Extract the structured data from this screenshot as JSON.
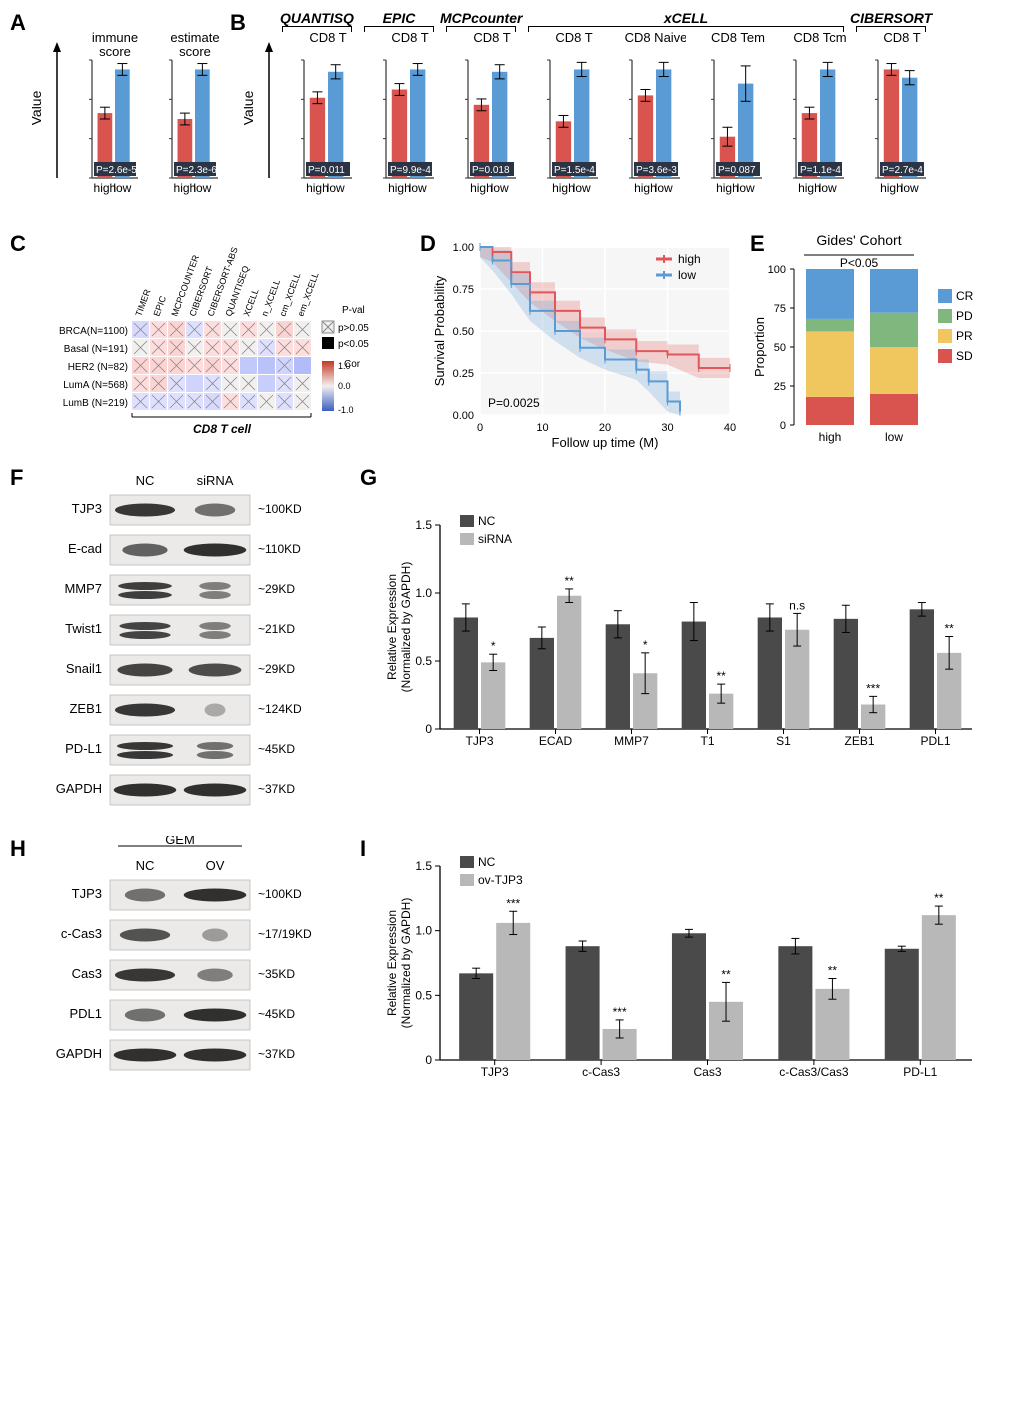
{
  "colors": {
    "high": "#d9534f",
    "low": "#5a9bd5",
    "dark_bar_bg": "#2a3445",
    "axis": "#333333",
    "nc_bar": "#4a4a4a",
    "si_bar": "#b8b8b8",
    "survival_high": "#e15759",
    "survival_low": "#76b7b2",
    "cr": "#5a9bd5",
    "pd": "#7fb77e",
    "pr": "#f0c75e",
    "sd": "#d9534f"
  },
  "panelA": {
    "charts": [
      {
        "title": "immune\\nscore",
        "high": 0.55,
        "low": 0.92,
        "high_err": 0.05,
        "low_err": 0.05,
        "p": "P=2.6e-5"
      },
      {
        "title": "estimate\\nscore",
        "high": 0.5,
        "low": 0.92,
        "high_err": 0.05,
        "low_err": 0.05,
        "p": "P=2.3e-6"
      }
    ],
    "ylabel": "Value",
    "xlabels": [
      "high",
      "low"
    ]
  },
  "panelB": {
    "ylabel": "Value",
    "xlabels": [
      "high",
      "low"
    ],
    "groups": [
      {
        "header": "QUANTISQ",
        "charts": [
          {
            "title": "CD8 T",
            "high": 0.68,
            "low": 0.9,
            "high_err": 0.05,
            "low_err": 0.06,
            "p": "P=0.011"
          }
        ]
      },
      {
        "header": "EPIC",
        "charts": [
          {
            "title": "CD8 T",
            "high": 0.75,
            "low": 0.92,
            "high_err": 0.05,
            "low_err": 0.05,
            "p": "P=9.9e-4"
          }
        ]
      },
      {
        "header": "MCPcounter",
        "charts": [
          {
            "title": "CD8 T",
            "high": 0.62,
            "low": 0.9,
            "high_err": 0.05,
            "low_err": 0.06,
            "p": "P=0.018"
          }
        ]
      },
      {
        "header": "xCELL",
        "charts": [
          {
            "title": "CD8 T",
            "high": 0.48,
            "low": 0.92,
            "high_err": 0.05,
            "low_err": 0.06,
            "p": "P=1.5e-4"
          },
          {
            "title": "CD8 Naive",
            "high": 0.7,
            "low": 0.92,
            "high_err": 0.05,
            "low_err": 0.06,
            "p": "P=3.6e-3"
          },
          {
            "title": "CD8 Tem",
            "high": 0.35,
            "low": 0.8,
            "high_err": 0.08,
            "low_err": 0.15,
            "p": "P=0.087"
          },
          {
            "title": "CD8 Tcm",
            "high": 0.55,
            "low": 0.92,
            "high_err": 0.05,
            "low_err": 0.06,
            "p": "P=1.1e-4"
          }
        ]
      },
      {
        "header": "CIBERSORT",
        "charts": [
          {
            "title": "CD8 T",
            "high": 0.92,
            "low": 0.85,
            "high_err": 0.05,
            "low_err": 0.06,
            "p": "P=2.7e-4"
          }
        ]
      }
    ]
  },
  "panelC": {
    "cols": [
      "TIMER",
      "EPIC",
      "MCPCOUNTER",
      "CIBERSORT",
      "CIBERSORT-ABS",
      "QUANTISEQ",
      "XCELL",
      "n_XCELL",
      "cm_XCELL",
      "em_XCELL"
    ],
    "rows": [
      "BRCA(N=1100)",
      "Basal (N=191)",
      "HER2 (N=82)",
      "LumA (N=568)",
      "LumB (N=219)"
    ],
    "footer": "CD8 T cell",
    "legend_p": {
      "gt": "p>0.05",
      "lt": "p<0.05",
      "label": "P-val"
    },
    "legend_cor": {
      "label": "Cor",
      "max": "1.0",
      "mid": "0.0",
      "min": "-1.0"
    },
    "cells": [
      [
        {
          "v": -0.1,
          "s": false
        },
        {
          "v": 0.05,
          "s": false
        },
        {
          "v": 0.1,
          "s": false
        },
        {
          "v": -0.05,
          "s": false
        },
        {
          "v": 0.05,
          "s": false
        },
        {
          "v": 0.0,
          "s": false
        },
        {
          "v": 0.05,
          "s": false
        },
        {
          "v": 0.0,
          "s": false
        },
        {
          "v": 0.1,
          "s": false
        },
        {
          "v": 0.0,
          "s": false
        }
      ],
      [
        {
          "v": 0.0,
          "s": false
        },
        {
          "v": 0.05,
          "s": false
        },
        {
          "v": 0.1,
          "s": false
        },
        {
          "v": 0.0,
          "s": false
        },
        {
          "v": 0.05,
          "s": false
        },
        {
          "v": 0.05,
          "s": false
        },
        {
          "v": 0.0,
          "s": false
        },
        {
          "v": -0.05,
          "s": false
        },
        {
          "v": 0.05,
          "s": false
        },
        {
          "v": 0.05,
          "s": false
        }
      ],
      [
        {
          "v": 0.1,
          "s": false
        },
        {
          "v": 0.1,
          "s": false
        },
        {
          "v": 0.1,
          "s": false
        },
        {
          "v": 0.05,
          "s": false
        },
        {
          "v": 0.1,
          "s": false
        },
        {
          "v": 0.05,
          "s": false
        },
        {
          "v": -0.25,
          "s": true
        },
        {
          "v": -0.3,
          "s": true
        },
        {
          "v": -0.15,
          "s": false
        },
        {
          "v": -0.35,
          "s": true
        }
      ],
      [
        {
          "v": 0.05,
          "s": false
        },
        {
          "v": 0.1,
          "s": false
        },
        {
          "v": -0.05,
          "s": false
        },
        {
          "v": -0.15,
          "s": true
        },
        {
          "v": -0.05,
          "s": false
        },
        {
          "v": 0.0,
          "s": false
        },
        {
          "v": 0.0,
          "s": false
        },
        {
          "v": -0.2,
          "s": true
        },
        {
          "v": -0.05,
          "s": false
        },
        {
          "v": 0.0,
          "s": false
        }
      ],
      [
        {
          "v": -0.05,
          "s": false
        },
        {
          "v": -0.05,
          "s": false
        },
        {
          "v": -0.05,
          "s": false
        },
        {
          "v": -0.05,
          "s": false
        },
        {
          "v": -0.1,
          "s": false
        },
        {
          "v": 0.05,
          "s": false
        },
        {
          "v": -0.05,
          "s": false
        },
        {
          "v": 0.0,
          "s": false
        },
        {
          "v": -0.05,
          "s": false
        },
        {
          "v": 0.0,
          "s": false
        }
      ]
    ]
  },
  "panelD": {
    "xlabel": "Follow up time (M)",
    "ylabel": "Survival Probability",
    "p": "P=0.0025",
    "legend": [
      "high",
      "low"
    ],
    "xlim": [
      0,
      40
    ],
    "ylim": [
      0,
      1
    ],
    "xtick": [
      0,
      10,
      20,
      30,
      40
    ],
    "ytick": [
      "0.00",
      "0.25",
      "0.50",
      "0.75",
      "1.00"
    ],
    "high_points": [
      [
        0,
        1
      ],
      [
        2,
        0.97
      ],
      [
        5,
        0.85
      ],
      [
        8,
        0.73
      ],
      [
        12,
        0.62
      ],
      [
        16,
        0.52
      ],
      [
        20,
        0.45
      ],
      [
        25,
        0.38
      ],
      [
        30,
        0.36
      ],
      [
        35,
        0.28
      ],
      [
        40,
        0.28
      ]
    ],
    "low_points": [
      [
        0,
        1
      ],
      [
        2,
        0.92
      ],
      [
        5,
        0.78
      ],
      [
        8,
        0.62
      ],
      [
        12,
        0.5
      ],
      [
        16,
        0.4
      ],
      [
        20,
        0.33
      ],
      [
        25,
        0.27
      ],
      [
        27,
        0.2
      ],
      [
        30,
        0.08
      ],
      [
        32,
        0.02
      ]
    ]
  },
  "panelE": {
    "title": "Gides' Cohort",
    "p": "P<0.05",
    "ylabel": "Proportion",
    "xlabels": [
      "high",
      "low"
    ],
    "legend": [
      "CR",
      "PD",
      "PR",
      "SD"
    ],
    "data": {
      "high": {
        "SD": 18,
        "PR": 42,
        "PD": 8,
        "CR": 32
      },
      "low": {
        "SD": 20,
        "PR": 30,
        "PD": 22,
        "CR": 28
      }
    },
    "yticks": [
      0,
      25,
      50,
      75,
      100
    ]
  },
  "panelF": {
    "header": [
      "NC",
      "siRNA"
    ],
    "rows": [
      {
        "label": "TJP3",
        "mw": "~100KD",
        "nc": 0.9,
        "si": 0.5
      },
      {
        "label": "E-cad",
        "mw": "~110KD",
        "nc": 0.6,
        "si": 0.95
      },
      {
        "label": "MMP7",
        "mw": "~29KD",
        "nc": 0.85,
        "si": 0.4,
        "double": true
      },
      {
        "label": "Twist1",
        "mw": "~21KD",
        "nc": 0.8,
        "si": 0.4,
        "double": true
      },
      {
        "label": "Snail1",
        "mw": "~29KD",
        "nc": 0.8,
        "si": 0.75
      },
      {
        "label": "ZEB1",
        "mw": "~124KD",
        "nc": 0.9,
        "si": 0.1
      },
      {
        "label": "PD-L1",
        "mw": "~45KD",
        "nc": 0.9,
        "si": 0.5,
        "double": true
      },
      {
        "label": "GAPDH",
        "mw": "~37KD",
        "nc": 0.95,
        "si": 0.95
      }
    ]
  },
  "panelG": {
    "ylabel": "Relative Expression\\n(Normalized by GAPDH)",
    "legend": [
      "NC",
      "siRNA"
    ],
    "ylim": [
      0,
      1.5
    ],
    "yticks": [
      "0",
      "0.5",
      "1.0",
      "1.5"
    ],
    "cats": [
      "TJP3",
      "ECAD",
      "MMP7",
      "T1",
      "S1",
      "ZEB1",
      "PDL1"
    ],
    "data": [
      {
        "nc": 0.82,
        "nc_e": 0.1,
        "si": 0.49,
        "si_e": 0.06,
        "sig": "*"
      },
      {
        "nc": 0.67,
        "nc_e": 0.08,
        "si": 0.98,
        "si_e": 0.05,
        "sig": "**"
      },
      {
        "nc": 0.77,
        "nc_e": 0.1,
        "si": 0.41,
        "si_e": 0.15,
        "sig": "*"
      },
      {
        "nc": 0.79,
        "nc_e": 0.14,
        "si": 0.26,
        "si_e": 0.07,
        "sig": "**"
      },
      {
        "nc": 0.82,
        "nc_e": 0.1,
        "si": 0.73,
        "si_e": 0.12,
        "sig": "n.s"
      },
      {
        "nc": 0.81,
        "nc_e": 0.1,
        "si": 0.18,
        "si_e": 0.06,
        "sig": "***"
      },
      {
        "nc": 0.88,
        "nc_e": 0.05,
        "si": 0.56,
        "si_e": 0.12,
        "sig": "**"
      }
    ]
  },
  "panelH": {
    "top_label": "GEM",
    "header": [
      "NC",
      "OV"
    ],
    "rows": [
      {
        "label": "TJP3",
        "mw": "~100KD",
        "nc": 0.5,
        "si": 0.95
      },
      {
        "label": "c-Cas3",
        "mw": "~17/19KD",
        "nc": 0.7,
        "si": 0.2
      },
      {
        "label": "Cas3",
        "mw": "~35KD",
        "nc": 0.9,
        "si": 0.4
      },
      {
        "label": "PDL1",
        "mw": "~45KD",
        "nc": 0.5,
        "si": 0.95
      },
      {
        "label": "GAPDH",
        "mw": "~37KD",
        "nc": 0.95,
        "si": 0.95
      }
    ]
  },
  "panelI": {
    "ylabel": "Relative Expression\\n(Normalized by GAPDH)",
    "legend": [
      "NC",
      "ov-TJP3"
    ],
    "ylim": [
      0,
      1.5
    ],
    "yticks": [
      "0",
      "0.5",
      "1.0",
      "1.5"
    ],
    "cats": [
      "TJP3",
      "c-Cas3",
      "Cas3",
      "c-Cas3/Cas3",
      "PD-L1"
    ],
    "data": [
      {
        "nc": 0.67,
        "nc_e": 0.04,
        "si": 1.06,
        "si_e": 0.09,
        "sig": "***"
      },
      {
        "nc": 0.88,
        "nc_e": 0.04,
        "si": 0.24,
        "si_e": 0.07,
        "sig": "***"
      },
      {
        "nc": 0.98,
        "nc_e": 0.03,
        "si": 0.45,
        "si_e": 0.15,
        "sig": "**"
      },
      {
        "nc": 0.88,
        "nc_e": 0.06,
        "si": 0.55,
        "si_e": 0.08,
        "sig": "**"
      },
      {
        "nc": 0.86,
        "nc_e": 0.02,
        "si": 1.12,
        "si_e": 0.07,
        "sig": "**"
      }
    ]
  }
}
